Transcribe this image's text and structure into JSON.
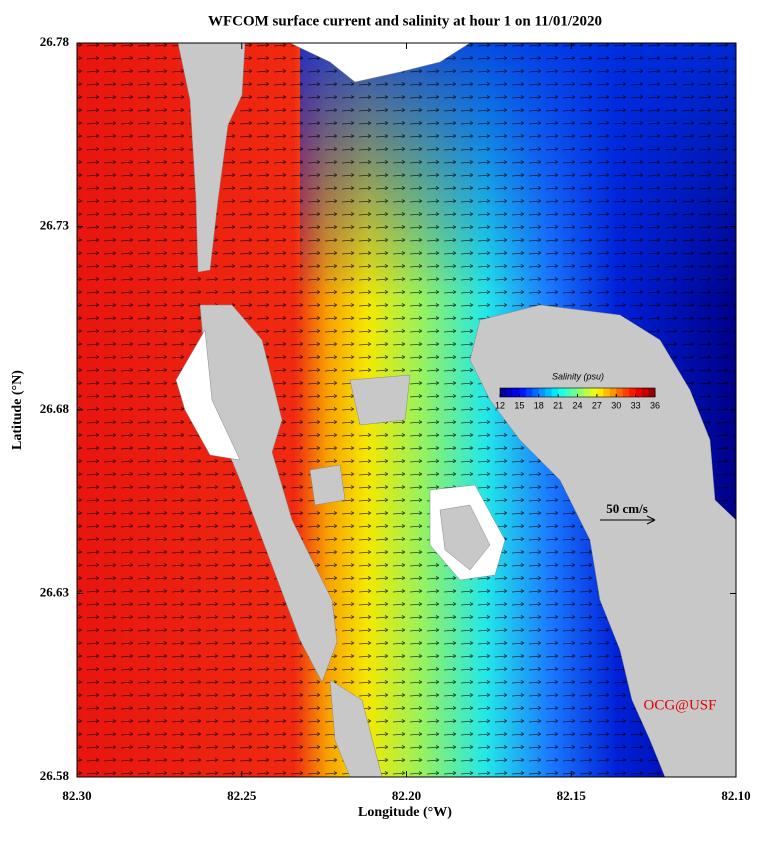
{
  "chart_data": {
    "type": "map",
    "title": "WFCOM surface current and salinity at hour 1 on 11/01/2020",
    "x_label": "Longitude (°W)",
    "y_label": "Latitude (°N)",
    "xlim": [
      82.3,
      82.1
    ],
    "ylim": [
      26.58,
      26.78
    ],
    "xticks": [
      {
        "value": 82.3,
        "label": "82.30"
      },
      82.25,
      {
        "value": 82.2,
        "label": "82.20"
      },
      82.15,
      {
        "value": 82.1,
        "label": "82.10"
      }
    ],
    "yticks": [
      26.58,
      26.63,
      26.68,
      26.73,
      26.78
    ],
    "colorbar": {
      "label": "Salinity (psu)",
      "lim": [
        12,
        36
      ],
      "ticks": [
        12,
        15,
        18,
        21,
        24,
        27,
        30,
        33,
        36
      ],
      "colormap": "jet"
    },
    "scale_label": "50 cm/s",
    "credit": "OCG@USF"
  }
}
